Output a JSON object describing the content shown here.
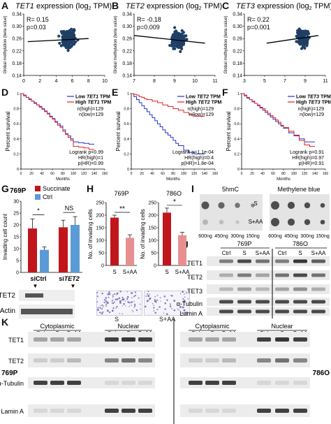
{
  "panel_letters": [
    "A",
    "B",
    "C",
    "D",
    "E",
    "F",
    "G",
    "H",
    "I",
    "J",
    "K"
  ],
  "chart_data": [
    {
      "type": "scatter",
      "id": "A",
      "title_gene": "TET1",
      "title_rest": " expression (log",
      "title_sub": "2",
      "title_end": " TPM)",
      "ylabel": "Global methylation (beta value)",
      "stats": [
        "R= 0.15",
        "p=0.03"
      ],
      "xlim": [
        0,
        10
      ],
      "ylim": [
        0.14,
        0.34
      ],
      "xticks": [
        "0",
        "2",
        "4",
        "6",
        "8",
        "10"
      ],
      "yticks": [
        "0.14",
        "0.18",
        "0.22",
        "0.26",
        "0.30",
        "0.34"
      ],
      "trend": {
        "x": [
          0.5,
          8
        ],
        "y": [
          0.25,
          0.26
        ]
      },
      "color": "#1f3f66"
    },
    {
      "type": "scatter",
      "id": "B",
      "title_gene": "TET2",
      "title_rest": " expression (log",
      "title_sub": "2",
      "title_end": " TPM)",
      "ylabel": "Global methylation (beta value)",
      "stats": [
        "R= -0.18",
        "p=0.009"
      ],
      "xlim": [
        7,
        11
      ],
      "ylim": [
        0.14,
        0.34
      ],
      "xticks": [
        "7",
        "8",
        "9",
        "10",
        "11"
      ],
      "yticks": [
        "0.14",
        "0.18",
        "0.22",
        "0.26",
        "0.30",
        "0.34"
      ],
      "trend": {
        "x": [
          7,
          10.5
        ],
        "y": [
          0.27,
          0.245
        ]
      },
      "color": "#1f3f66"
    },
    {
      "type": "scatter",
      "id": "C",
      "title_gene": "TET3",
      "title_rest": " expression (log",
      "title_sub": "2",
      "title_end": " TPM)",
      "ylabel": "Global methylation (beta value)",
      "stats": [
        "R= 0.22",
        "p=0.001"
      ],
      "xlim": [
        3,
        11
      ],
      "ylim": [
        0.14,
        0.34
      ],
      "xticks": [
        "3",
        "5",
        "7",
        "9",
        "11"
      ],
      "yticks": [
        "0.14",
        "0.18",
        "0.22",
        "0.26",
        "0.30",
        "0.34"
      ],
      "trend": {
        "x": [
          5.2,
          10.3
        ],
        "y": [
          0.245,
          0.27
        ]
      },
      "color": "#1f3f66"
    },
    {
      "type": "line",
      "id": "D",
      "ylabel": "Percent survival",
      "xlabel": "Months",
      "xlim": [
        0,
        160
      ],
      "ylim": [
        0,
        1
      ],
      "xticks": [
        "0",
        "20",
        "40",
        "60",
        "80",
        "100",
        "120",
        "140",
        "160"
      ],
      "yticks": [
        "0",
        "0.2",
        "0.4",
        "0.6",
        "0.8",
        "1"
      ],
      "legend": [
        {
          "label_pre": "Low ",
          "gene": "TET1",
          "label_post": " TPM",
          "color": "#2233cc"
        },
        {
          "label_pre": "High ",
          "gene": "TET1",
          "label_post": " TPM",
          "color": "#dd2222"
        }
      ],
      "n_text": [
        "n(high)=129",
        "n(low)=129"
      ],
      "stats": [
        "Logrank p=0.99",
        "HR(high)=1",
        "p(HR)=0.99"
      ],
      "series": [
        {
          "color": "#2233cc",
          "x": [
            0,
            5,
            10,
            15,
            20,
            25,
            30,
            35,
            40,
            45,
            50,
            55,
            60,
            65,
            70,
            75,
            80,
            85,
            90,
            95,
            100,
            110,
            120,
            130,
            140
          ],
          "y": [
            1,
            0.97,
            0.95,
            0.92,
            0.9,
            0.87,
            0.85,
            0.83,
            0.8,
            0.77,
            0.74,
            0.7,
            0.67,
            0.63,
            0.6,
            0.57,
            0.52,
            0.47,
            0.44,
            0.4,
            0.36,
            0.35,
            0.34,
            0.33,
            0.33
          ]
        },
        {
          "color": "#dd2222",
          "x": [
            0,
            5,
            10,
            15,
            20,
            25,
            30,
            35,
            40,
            45,
            50,
            55,
            60,
            65,
            70,
            75,
            80,
            85,
            90,
            95,
            100,
            110,
            120,
            130,
            140
          ],
          "y": [
            1,
            0.98,
            0.95,
            0.93,
            0.9,
            0.88,
            0.85,
            0.82,
            0.79,
            0.76,
            0.73,
            0.69,
            0.66,
            0.62,
            0.58,
            0.55,
            0.5,
            0.46,
            0.42,
            0.38,
            0.3,
            0.29,
            0.28,
            0.26,
            0.26
          ]
        }
      ]
    },
    {
      "type": "line",
      "id": "E",
      "ylabel": "Percent survival",
      "xlabel": "Months",
      "xlim": [
        0,
        160
      ],
      "ylim": [
        0,
        1
      ],
      "xticks": [
        "0",
        "20",
        "40",
        "60",
        "80",
        "100",
        "120",
        "140",
        "160"
      ],
      "yticks": [
        "0",
        "0.2",
        "0.4",
        "0.6",
        "0.8",
        "1"
      ],
      "legend": [
        {
          "label_pre": "Low ",
          "gene": "TET2",
          "label_post": " TPM",
          "color": "#2233cc"
        },
        {
          "label_pre": "High ",
          "gene": "TET2",
          "label_post": " TPM",
          "color": "#dd2222"
        }
      ],
      "n_text": [
        "n(high)=129",
        "n(low)=129"
      ],
      "stats": [
        "Logrank p=1.1e-04",
        "HR(high)=0.4",
        "p(HR)=1.8e-04"
      ],
      "series": [
        {
          "color": "#2233cc",
          "x": [
            0,
            5,
            10,
            15,
            20,
            25,
            30,
            35,
            40,
            45,
            50,
            55,
            60,
            65,
            70,
            75,
            80,
            85,
            90,
            100,
            110,
            120,
            130,
            140
          ],
          "y": [
            1,
            0.96,
            0.92,
            0.88,
            0.84,
            0.8,
            0.76,
            0.72,
            0.68,
            0.64,
            0.6,
            0.56,
            0.52,
            0.48,
            0.45,
            0.42,
            0.38,
            0.34,
            0.31,
            0.25,
            0.22,
            0.2,
            0.2,
            0.2
          ]
        },
        {
          "color": "#dd2222",
          "x": [
            0,
            5,
            10,
            15,
            20,
            25,
            30,
            40,
            50,
            60,
            70,
            80,
            90,
            100,
            110,
            120,
            130,
            140
          ],
          "y": [
            1,
            0.99,
            0.98,
            0.96,
            0.95,
            0.93,
            0.92,
            0.9,
            0.88,
            0.85,
            0.83,
            0.8,
            0.78,
            0.75,
            0.72,
            0.7,
            0.7,
            0.7
          ]
        }
      ]
    },
    {
      "type": "line",
      "id": "F",
      "ylabel": "Percent survival",
      "xlabel": "Months",
      "xlim": [
        0,
        160
      ],
      "ylim": [
        0,
        1
      ],
      "xticks": [
        "0",
        "20",
        "40",
        "60",
        "80",
        "100",
        "120",
        "140",
        "160"
      ],
      "yticks": [
        "0",
        "0.2",
        "0.4",
        "0.6",
        "0.8",
        "1"
      ],
      "legend": [
        {
          "label_pre": "Low ",
          "gene": "TET3",
          "label_post": " TPM",
          "color": "#2233cc"
        },
        {
          "label_pre": "High ",
          "gene": "TET3",
          "label_post": " TPM",
          "color": "#dd2222"
        }
      ],
      "n_text": [
        "n(high)=129",
        "n(low)=129"
      ],
      "stats": [
        "Logrank p=0.91",
        "HR(high)=0.97",
        "p(HR)=0.91"
      ],
      "series": [
        {
          "color": "#2233cc",
          "x": [
            0,
            5,
            10,
            15,
            20,
            25,
            30,
            35,
            40,
            45,
            50,
            55,
            60,
            65,
            70,
            75,
            80,
            90,
            100,
            110,
            120,
            130,
            140
          ],
          "y": [
            1,
            0.97,
            0.94,
            0.92,
            0.89,
            0.87,
            0.84,
            0.81,
            0.78,
            0.75,
            0.72,
            0.69,
            0.66,
            0.63,
            0.6,
            0.57,
            0.54,
            0.48,
            0.44,
            0.4,
            0.36,
            0.36,
            0.36
          ]
        },
        {
          "color": "#dd2222",
          "x": [
            0,
            5,
            10,
            15,
            20,
            25,
            30,
            35,
            40,
            45,
            50,
            55,
            60,
            65,
            70,
            75,
            80,
            90,
            100,
            110,
            120,
            130,
            140
          ],
          "y": [
            1,
            0.98,
            0.95,
            0.92,
            0.9,
            0.87,
            0.85,
            0.82,
            0.8,
            0.77,
            0.74,
            0.71,
            0.68,
            0.65,
            0.62,
            0.58,
            0.55,
            0.5,
            0.45,
            0.38,
            0.32,
            0.3,
            0.3
          ]
        }
      ]
    },
    {
      "type": "bar",
      "id": "G",
      "title": "769P",
      "ylabel": "Invading cell count",
      "ylim": [
        0,
        30
      ],
      "yticks": [
        "0",
        "5",
        "10",
        "15",
        "20",
        "25",
        "30"
      ],
      "legend": [
        {
          "label": "Succinate",
          "color": "#c0161b"
        },
        {
          "label": "Ctrl",
          "color": "#5b9bd5"
        }
      ],
      "groups": [
        {
          "label_pre": "si",
          "label_gene": "Ctrl",
          "values": [
            18.5,
            9.5
          ],
          "errors": [
            4,
            1.2
          ],
          "sig": "*"
        },
        {
          "label_pre": "si",
          "label_gene": "TET2",
          "values": [
            19,
            20
          ],
          "errors": [
            3,
            3.5
          ],
          "sig": "NS"
        }
      ]
    },
    {
      "type": "bar",
      "id": "H1",
      "title": "769P",
      "ylabel": "No. of invading cells",
      "ylim": [
        0,
        250
      ],
      "yticks": [
        "0",
        "50",
        "100",
        "150",
        "200",
        "250"
      ],
      "categories": [
        "S",
        "S+AA"
      ],
      "values": [
        190,
        110
      ],
      "errors": [
        10,
        12
      ],
      "colors": [
        "#c0161b",
        "#e89090"
      ],
      "sig": "**"
    },
    {
      "type": "bar",
      "id": "H2",
      "title": "786O",
      "ylabel": "No. of invading cells",
      "ylim": [
        0,
        250
      ],
      "yticks": [
        "0",
        "50",
        "100",
        "150",
        "200",
        "250"
      ],
      "categories": [
        "S",
        "S+AA"
      ],
      "values": [
        210,
        120
      ],
      "errors": [
        18,
        12
      ],
      "colors": [
        "#c0161b",
        "#e89090"
      ],
      "sig": "*"
    }
  ],
  "panel_G_blot": {
    "rows": [
      "TET2",
      "β-Actin"
    ]
  },
  "panel_H_images": {
    "labels": [
      "S",
      "S+AA"
    ]
  },
  "panel_I": {
    "headers": [
      "5hmC",
      "Methylene blue"
    ],
    "arrow_labels": [
      "S",
      "S+AA"
    ],
    "amounts": [
      "600ng",
      "450ng",
      "300ng",
      "150ng"
    ]
  },
  "panel_J": {
    "cell_lines": [
      "769P",
      "786O"
    ],
    "lanes": [
      "Ctrl",
      "S",
      "S+AA"
    ],
    "rows": [
      "TET1",
      "TET2",
      "TET3",
      "α-Tubulin",
      "Lamin A"
    ]
  },
  "panel_K": {
    "fractions": [
      "Cytoplasmic",
      "Nuclear"
    ],
    "lanes": [
      "Ctrl",
      "S",
      "S+AA"
    ],
    "rows": [
      "TET1",
      "TET2",
      "α-Tubulin",
      "Lamin A"
    ],
    "cell_lines": [
      "769P",
      "786O"
    ]
  }
}
